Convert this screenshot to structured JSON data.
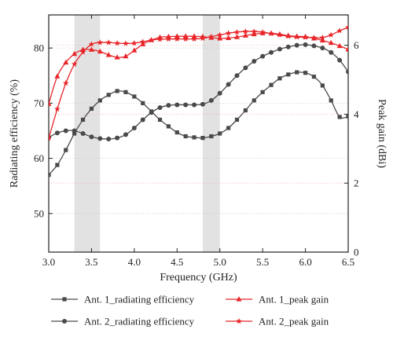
{
  "chart_data": {
    "type": "line",
    "xlabel": "Frequency (GHz)",
    "ylabel_left": "Radiating efficiency (%)",
    "ylabel_right": "Peak gain (dBi)",
    "xlim": [
      3.0,
      6.5
    ],
    "ylim_left": [
      43,
      86
    ],
    "ylim_right": [
      0,
      6.88
    ],
    "x_ticks": [
      "3.0",
      "3.5",
      "4.0",
      "4.5",
      "5.0",
      "5.5",
      "6.0",
      "6.5"
    ],
    "y_left_ticks": [
      "50",
      "60",
      "70",
      "80"
    ],
    "y_right_ticks": [
      "0",
      "2",
      "4",
      "6"
    ],
    "shaded_bands": [
      [
        3.3,
        3.6
      ],
      [
        4.8,
        5.0
      ]
    ],
    "colors": {
      "efficiency": "#4a4a4a",
      "gain": "#e8262a",
      "band": "#e2e2e2"
    },
    "series": [
      {
        "name": "Ant. 1_radiating efficiency",
        "axis": "left",
        "marker": "square",
        "x": [
          3.0,
          3.1,
          3.2,
          3.3,
          3.4,
          3.5,
          3.6,
          3.7,
          3.8,
          3.9,
          4.0,
          4.1,
          4.2,
          4.3,
          4.4,
          4.5,
          4.6,
          4.7,
          4.8,
          4.9,
          5.0,
          5.1,
          5.2,
          5.3,
          5.4,
          5.5,
          5.6,
          5.7,
          5.8,
          5.9,
          6.0,
          6.1,
          6.2,
          6.3,
          6.4,
          6.5
        ],
        "y": [
          57.0,
          58.8,
          61.5,
          64.5,
          67.0,
          69.0,
          70.5,
          71.5,
          72.2,
          72.0,
          71.2,
          70.0,
          68.5,
          67.0,
          65.8,
          64.7,
          64.0,
          63.8,
          63.7,
          64.0,
          64.5,
          65.5,
          67.0,
          68.7,
          70.5,
          72.0,
          73.3,
          74.5,
          75.2,
          75.6,
          75.5,
          74.8,
          73.2,
          70.5,
          67.5,
          67.6
        ]
      },
      {
        "name": "Ant. 2_radiating efficiency",
        "axis": "left",
        "marker": "circle",
        "x": [
          3.0,
          3.1,
          3.2,
          3.3,
          3.4,
          3.5,
          3.6,
          3.7,
          3.8,
          3.9,
          4.0,
          4.1,
          4.2,
          4.3,
          4.4,
          4.5,
          4.6,
          4.7,
          4.8,
          4.9,
          5.0,
          5.1,
          5.2,
          5.3,
          5.4,
          5.5,
          5.6,
          5.7,
          5.8,
          5.9,
          6.0,
          6.1,
          6.2,
          6.3,
          6.4,
          6.5
        ],
        "y": [
          63.8,
          64.6,
          65.0,
          65.0,
          64.5,
          63.9,
          63.6,
          63.5,
          63.7,
          64.3,
          65.5,
          67.0,
          68.3,
          69.2,
          69.6,
          69.7,
          69.7,
          69.7,
          69.8,
          70.5,
          71.8,
          73.4,
          75.0,
          76.4,
          77.6,
          78.5,
          79.2,
          79.8,
          80.2,
          80.5,
          80.6,
          80.4,
          80.0,
          79.2,
          77.8,
          75.7
        ]
      },
      {
        "name": "Ant. 1_peak gain",
        "axis": "right",
        "marker": "triangle",
        "x": [
          3.0,
          3.1,
          3.2,
          3.3,
          3.4,
          3.5,
          3.6,
          3.7,
          3.8,
          3.9,
          4.0,
          4.1,
          4.2,
          4.3,
          4.4,
          4.5,
          4.6,
          4.7,
          4.8,
          4.9,
          5.0,
          5.1,
          5.2,
          5.3,
          5.4,
          5.5,
          5.6,
          5.7,
          5.8,
          5.9,
          6.0,
          6.1,
          6.2,
          6.3,
          6.4,
          6.5
        ],
        "y": [
          4.3,
          5.1,
          5.5,
          5.75,
          5.87,
          5.87,
          5.82,
          5.72,
          5.65,
          5.68,
          5.85,
          6.03,
          6.15,
          6.23,
          6.25,
          6.26,
          6.26,
          6.26,
          6.25,
          6.22,
          6.2,
          6.21,
          6.24,
          6.28,
          6.32,
          6.35,
          6.35,
          6.32,
          6.28,
          6.26,
          6.25,
          6.2,
          6.14,
          6.07,
          5.98,
          5.88
        ]
      },
      {
        "name": "Ant. 2_peak gain",
        "axis": "right",
        "marker": "star",
        "x": [
          3.0,
          3.1,
          3.2,
          3.3,
          3.4,
          3.5,
          3.6,
          3.7,
          3.8,
          3.9,
          4.0,
          4.1,
          4.2,
          4.3,
          4.4,
          4.5,
          4.6,
          4.7,
          4.8,
          4.9,
          5.0,
          5.1,
          5.2,
          5.3,
          5.4,
          5.5,
          5.6,
          5.7,
          5.8,
          5.9,
          6.0,
          6.1,
          6.2,
          6.3,
          6.4,
          6.5
        ],
        "y": [
          3.3,
          4.15,
          4.9,
          5.45,
          5.8,
          6.03,
          6.08,
          6.08,
          6.06,
          6.05,
          6.06,
          6.1,
          6.15,
          6.17,
          6.18,
          6.18,
          6.18,
          6.18,
          6.2,
          6.25,
          6.3,
          6.35,
          6.38,
          6.4,
          6.4,
          6.38,
          6.34,
          6.3,
          6.26,
          6.24,
          6.23,
          6.22,
          6.22,
          6.3,
          6.42,
          6.52
        ]
      }
    ],
    "legend": {
      "placement": "bottom",
      "entries": [
        "Ant. 1_radiating efficiency",
        "Ant. 1_peak gain",
        "Ant. 2_radiating efficiency",
        "Ant. 2_peak gain"
      ]
    }
  }
}
